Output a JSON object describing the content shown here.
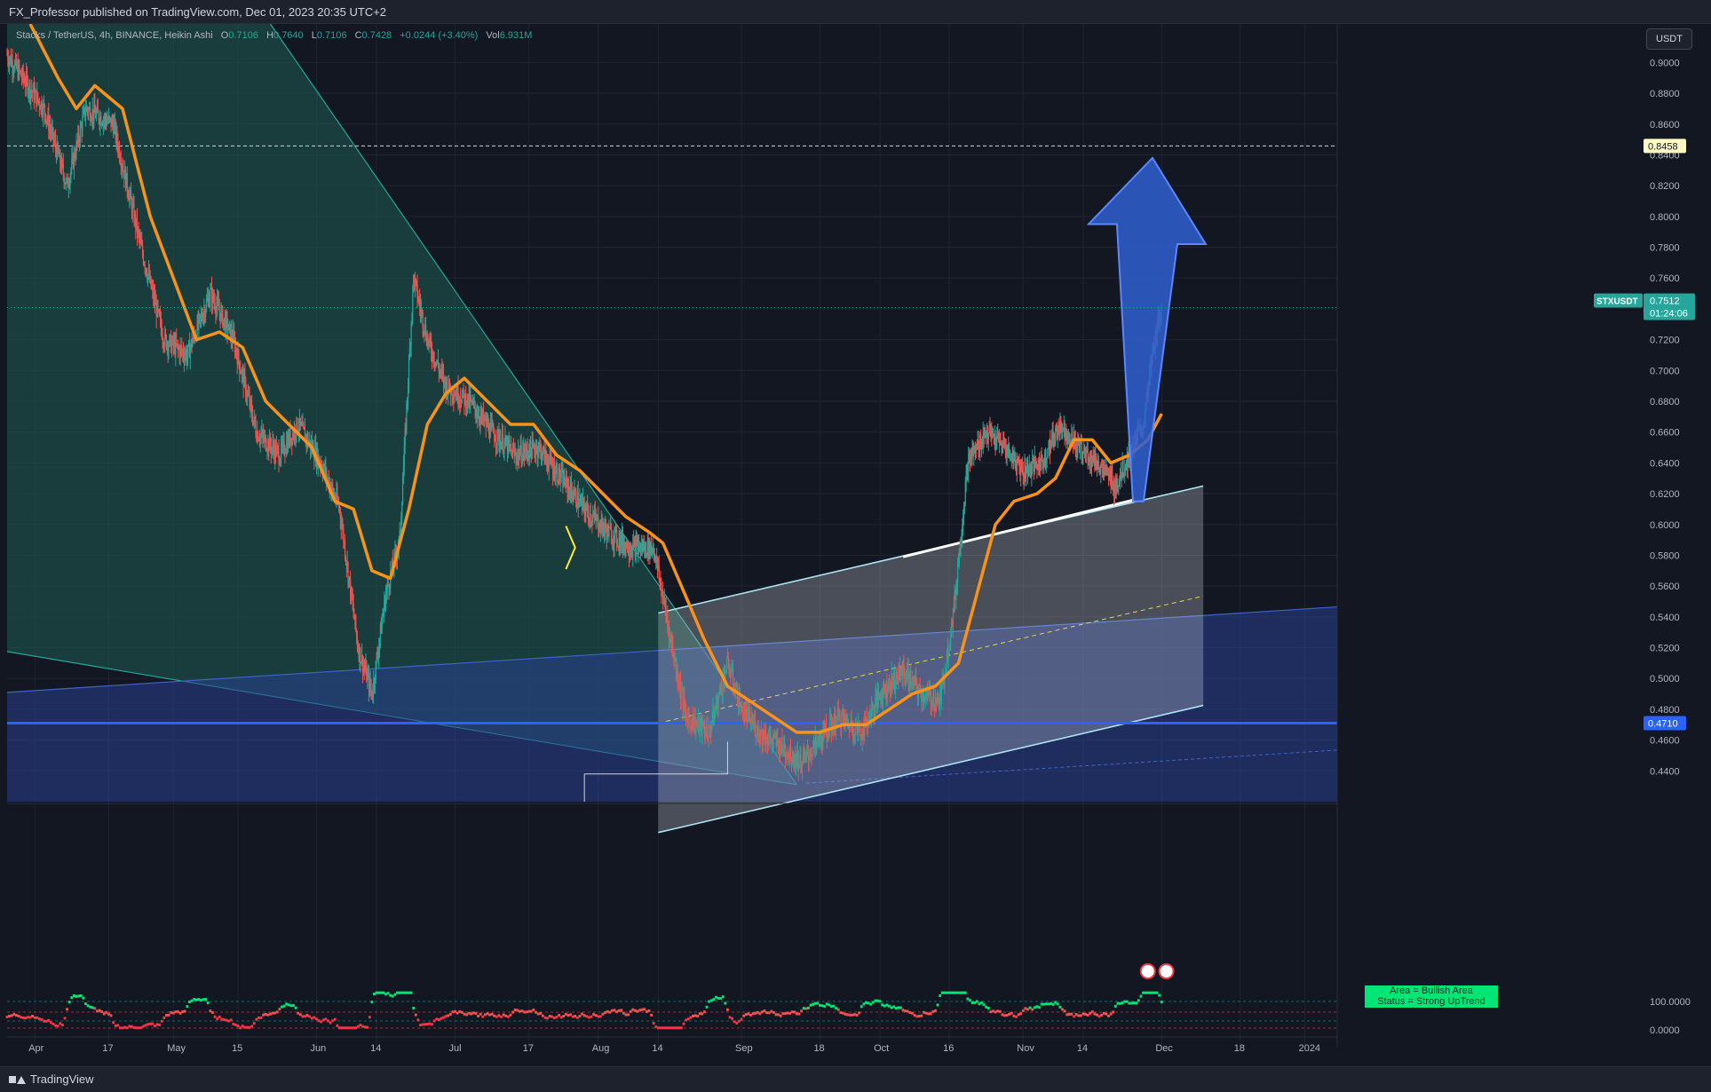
{
  "header": {
    "publisher": "FX_Professor published on TradingView.com, Dec 01, 2023 20:35 UTC+2"
  },
  "footer": {
    "brand": "TradingView"
  },
  "legend": {
    "symbol": "Stacks / TetherUS, 4h, BINANCE, Heikin Ashi",
    "o_label": "O",
    "o": "0.7106",
    "h_label": "H",
    "h": "0.7640",
    "l_label": "L",
    "l": "0.7106",
    "c_label": "C",
    "c": "0.7428",
    "change": "+0.0244 (+3.40%)",
    "vol_label": "Vol",
    "vol": "6.931M"
  },
  "currency_button": "USDT",
  "indicator_annotation": {
    "line1": "Area = Bullish Area",
    "line2": "Status = Strong UpTrend"
  },
  "colors": {
    "background": "#131722",
    "up": "#26a69a",
    "down": "#ef5350",
    "moving_average": "#f7931a",
    "channel": "#aee3f2",
    "support_line": "#2962ff",
    "arrow": "#2f5fd0"
  },
  "chart_data": {
    "type": "candlestick",
    "symbol": "STXUSDT",
    "timeframe": "4h",
    "y_scale": {
      "min": 0.42,
      "max": 0.925
    },
    "y_ticks": [
      "0.9000",
      "0.8800",
      "0.8600",
      "0.8400",
      "0.8200",
      "0.8000",
      "0.7800",
      "0.7600",
      "0.7400",
      "0.7200",
      "0.7000",
      "0.6800",
      "0.6600",
      "0.6400",
      "0.6200",
      "0.6000",
      "0.5800",
      "0.5600",
      "0.5400",
      "0.5200",
      "0.5000",
      "0.4800",
      "0.4600",
      "0.4400"
    ],
    "x_ticks": [
      {
        "label": "Apr",
        "date": "2023-04-01"
      },
      {
        "label": "17",
        "date": "2023-04-17"
      },
      {
        "label": "May",
        "date": "2023-05-01"
      },
      {
        "label": "15",
        "date": "2023-05-15"
      },
      {
        "label": "Jun",
        "date": "2023-06-01"
      },
      {
        "label": "14",
        "date": "2023-06-14"
      },
      {
        "label": "Jul",
        "date": "2023-07-01"
      },
      {
        "label": "17",
        "date": "2023-07-17"
      },
      {
        "label": "Aug",
        "date": "2023-08-01"
      },
      {
        "label": "14",
        "date": "2023-08-14"
      },
      {
        "label": "Sep",
        "date": "2023-09-01"
      },
      {
        "label": "18",
        "date": "2023-09-18"
      },
      {
        "label": "Oct",
        "date": "2023-10-01"
      },
      {
        "label": "16",
        "date": "2023-10-16"
      },
      {
        "label": "Nov",
        "date": "2023-11-01"
      },
      {
        "label": "14",
        "date": "2023-11-14"
      },
      {
        "label": "Dec",
        "date": "2023-12-01"
      },
      {
        "label": "18",
        "date": "2023-12-18"
      },
      {
        "label": "2024",
        "date": "2024-01-01"
      }
    ],
    "x_range": [
      "2023-03-26",
      "2024-01-08"
    ],
    "price_path": [
      [
        "2023-03-26",
        0.905
      ],
      [
        "2023-04-03",
        0.87
      ],
      [
        "2023-04-08",
        0.82
      ],
      [
        "2023-04-12",
        0.87
      ],
      [
        "2023-04-18",
        0.86
      ],
      [
        "2023-04-24",
        0.78
      ],
      [
        "2023-04-29",
        0.72
      ],
      [
        "2023-05-04",
        0.71
      ],
      [
        "2023-05-09",
        0.75
      ],
      [
        "2023-05-14",
        0.72
      ],
      [
        "2023-05-19",
        0.66
      ],
      [
        "2023-05-24",
        0.645
      ],
      [
        "2023-05-28",
        0.665
      ],
      [
        "2023-06-02",
        0.64
      ],
      [
        "2023-06-06",
        0.61
      ],
      [
        "2023-06-10",
        0.52
      ],
      [
        "2023-06-13",
        0.49
      ],
      [
        "2023-06-16",
        0.555
      ],
      [
        "2023-06-19",
        0.59
      ],
      [
        "2023-06-22",
        0.76
      ],
      [
        "2023-06-25",
        0.72
      ],
      [
        "2023-06-29",
        0.69
      ],
      [
        "2023-07-04",
        0.68
      ],
      [
        "2023-07-09",
        0.66
      ],
      [
        "2023-07-14",
        0.645
      ],
      [
        "2023-07-19",
        0.65
      ],
      [
        "2023-07-24",
        0.63
      ],
      [
        "2023-07-29",
        0.61
      ],
      [
        "2023-08-03",
        0.595
      ],
      [
        "2023-08-08",
        0.585
      ],
      [
        "2023-08-13",
        0.585
      ],
      [
        "2023-08-17",
        0.52
      ],
      [
        "2023-08-20",
        0.475
      ],
      [
        "2023-08-25",
        0.465
      ],
      [
        "2023-08-29",
        0.51
      ],
      [
        "2023-09-01",
        0.48
      ],
      [
        "2023-09-05",
        0.465
      ],
      [
        "2023-09-10",
        0.455
      ],
      [
        "2023-09-14",
        0.445
      ],
      [
        "2023-09-18",
        0.46
      ],
      [
        "2023-09-22",
        0.475
      ],
      [
        "2023-09-27",
        0.465
      ],
      [
        "2023-10-01",
        0.49
      ],
      [
        "2023-10-06",
        0.505
      ],
      [
        "2023-10-10",
        0.49
      ],
      [
        "2023-10-14",
        0.485
      ],
      [
        "2023-10-17",
        0.545
      ],
      [
        "2023-10-20",
        0.64
      ],
      [
        "2023-10-24",
        0.66
      ],
      [
        "2023-10-28",
        0.65
      ],
      [
        "2023-11-01",
        0.635
      ],
      [
        "2023-11-05",
        0.64
      ],
      [
        "2023-11-09",
        0.665
      ],
      [
        "2023-11-13",
        0.65
      ],
      [
        "2023-11-17",
        0.64
      ],
      [
        "2023-11-21",
        0.625
      ],
      [
        "2023-11-24",
        0.645
      ],
      [
        "2023-11-27",
        0.665
      ],
      [
        "2023-11-29",
        0.71
      ],
      [
        "2023-12-01",
        0.7428
      ]
    ],
    "ma_path": [
      [
        "2023-03-31",
        0.925
      ],
      [
        "2023-04-06",
        0.89
      ],
      [
        "2023-04-10",
        0.87
      ],
      [
        "2023-04-14",
        0.885
      ],
      [
        "2023-04-20",
        0.87
      ],
      [
        "2023-04-26",
        0.8
      ],
      [
        "2023-05-01",
        0.76
      ],
      [
        "2023-05-06",
        0.72
      ],
      [
        "2023-05-11",
        0.725
      ],
      [
        "2023-05-16",
        0.715
      ],
      [
        "2023-05-21",
        0.68
      ],
      [
        "2023-05-26",
        0.665
      ],
      [
        "2023-05-31",
        0.65
      ],
      [
        "2023-06-05",
        0.615
      ],
      [
        "2023-06-09",
        0.61
      ],
      [
        "2023-06-13",
        0.57
      ],
      [
        "2023-06-17",
        0.565
      ],
      [
        "2023-06-21",
        0.61
      ],
      [
        "2023-06-25",
        0.665
      ],
      [
        "2023-06-29",
        0.685
      ],
      [
        "2023-07-03",
        0.695
      ],
      [
        "2023-07-08",
        0.68
      ],
      [
        "2023-07-13",
        0.665
      ],
      [
        "2023-07-18",
        0.665
      ],
      [
        "2023-07-23",
        0.645
      ],
      [
        "2023-07-28",
        0.635
      ],
      [
        "2023-08-02",
        0.62
      ],
      [
        "2023-08-07",
        0.605
      ],
      [
        "2023-08-12",
        0.595
      ],
      [
        "2023-08-15",
        0.588
      ],
      [
        "2023-08-19",
        0.56
      ],
      [
        "2023-08-24",
        0.525
      ],
      [
        "2023-08-29",
        0.495
      ],
      [
        "2023-09-03",
        0.485
      ],
      [
        "2023-09-08",
        0.475
      ],
      [
        "2023-09-13",
        0.465
      ],
      [
        "2023-09-18",
        0.465
      ],
      [
        "2023-09-23",
        0.47
      ],
      [
        "2023-09-28",
        0.47
      ],
      [
        "2023-10-03",
        0.48
      ],
      [
        "2023-10-08",
        0.49
      ],
      [
        "2023-10-13",
        0.495
      ],
      [
        "2023-10-18",
        0.51
      ],
      [
        "2023-10-22",
        0.555
      ],
      [
        "2023-10-26",
        0.6
      ],
      [
        "2023-10-30",
        0.615
      ],
      [
        "2023-11-04",
        0.62
      ],
      [
        "2023-11-08",
        0.63
      ],
      [
        "2023-11-12",
        0.655
      ],
      [
        "2023-11-16",
        0.655
      ],
      [
        "2023-11-20",
        0.64
      ],
      [
        "2023-11-24",
        0.645
      ],
      [
        "2023-11-28",
        0.655
      ],
      [
        "2023-12-01",
        0.672
      ]
    ],
    "horizontal_levels": [
      {
        "price": 0.8458,
        "label": "0.8458",
        "style": "dashed"
      },
      {
        "price": 0.471,
        "label": "0.4710",
        "style": "solid"
      }
    ],
    "last_price": {
      "symbol": "STXUSDT",
      "price": 0.7512,
      "label": "0.7512",
      "countdown": "01:24:06"
    },
    "indicator": {
      "type": "trend-oscillator",
      "y_ticks": [
        "100.0000",
        "0.0000"
      ]
    }
  }
}
